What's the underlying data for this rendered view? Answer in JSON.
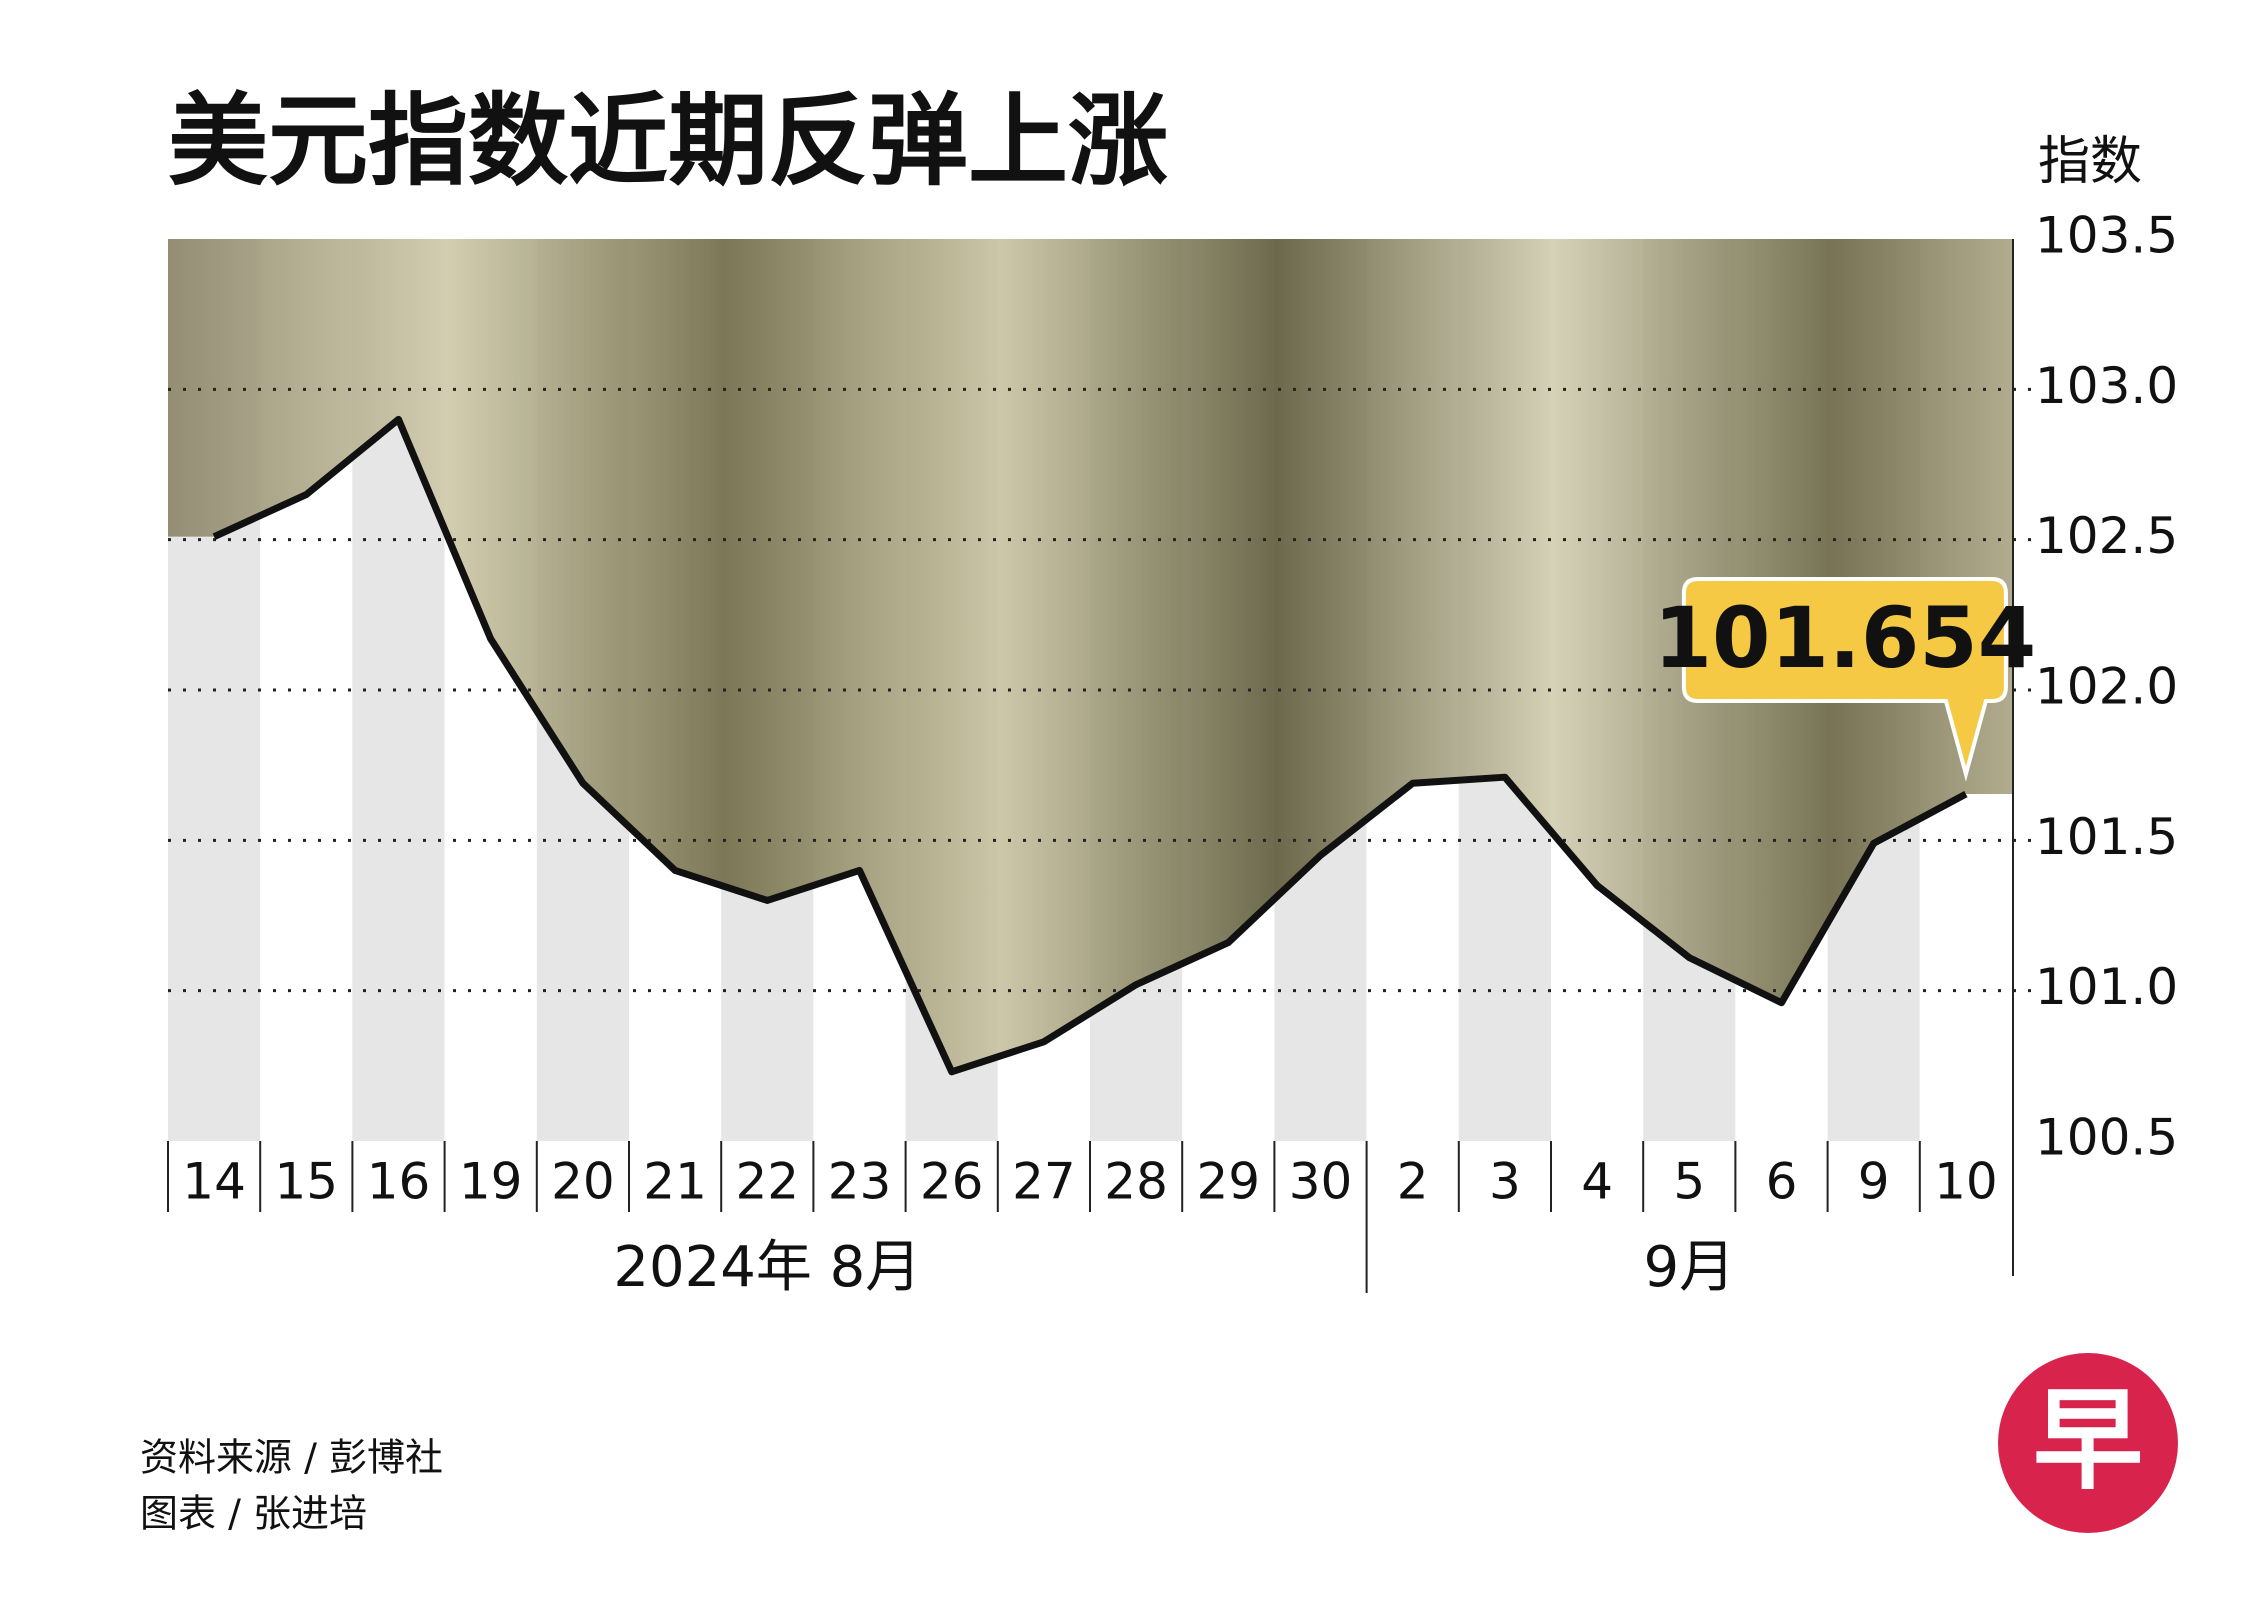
{
  "chart_data": {
    "type": "line",
    "title": "美元指数近期反弹上涨",
    "y_label": "指数",
    "categories": [
      "14",
      "15",
      "16",
      "19",
      "20",
      "21",
      "22",
      "23",
      "26",
      "27",
      "28",
      "29",
      "30",
      "2",
      "3",
      "4",
      "5",
      "6",
      "9",
      "10"
    ],
    "month_labels": [
      "2024年 8月",
      "9月"
    ],
    "series": [
      {
        "name": "美元指数",
        "color": "#111111",
        "values": [
          102.51,
          102.65,
          102.9,
          102.17,
          101.69,
          101.4,
          101.3,
          101.4,
          100.73,
          100.83,
          101.02,
          101.16,
          101.45,
          101.69,
          101.71,
          101.35,
          101.11,
          100.96,
          101.49,
          101.654
        ]
      }
    ],
    "ylim": [
      100.5,
      103.5
    ],
    "yticks": [
      100.5,
      {
        "value": 101,
        "label": "101.0"
      },
      101.5,
      {
        "value": 102,
        "label": "102.0"
      },
      102.5,
      {
        "value": 103,
        "label": "103.0"
      },
      103.5
    ],
    "grid": true
  },
  "footer": {
    "source": "资料来源 / 彭博社",
    "credit": "图表 / 张进培",
    "logo": "早"
  }
}
